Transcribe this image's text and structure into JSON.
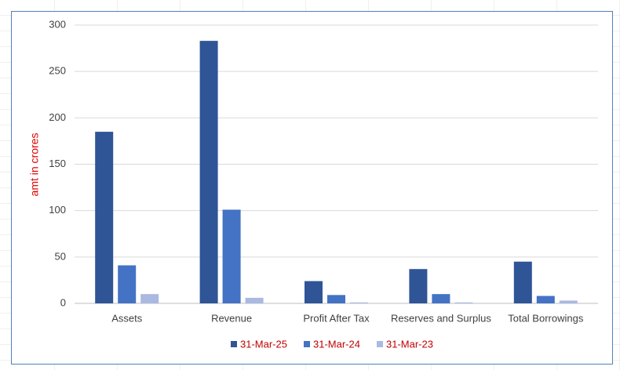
{
  "chart_data": {
    "type": "bar",
    "y_axis_label": "amt in crores",
    "categories": [
      "Assets",
      "Revenue",
      "Profit After Tax",
      "Reserves and Surplus",
      "Total Borrowings"
    ],
    "series": [
      {
        "name": "31-Mar-25",
        "color": "#2f5597",
        "values": [
          185,
          283,
          24,
          37,
          45
        ]
      },
      {
        "name": "31-Mar-24",
        "color": "#4472c4",
        "values": [
          41,
          101,
          9,
          10,
          8
        ]
      },
      {
        "name": "31-Mar-23",
        "color": "#a9b9e1",
        "values": [
          10,
          6,
          1,
          1,
          3
        ]
      }
    ],
    "ylim": [
      0,
      300
    ],
    "yticks": [
      0,
      50,
      100,
      150,
      200,
      250,
      300
    ],
    "grid": true,
    "legend": "bottom"
  }
}
